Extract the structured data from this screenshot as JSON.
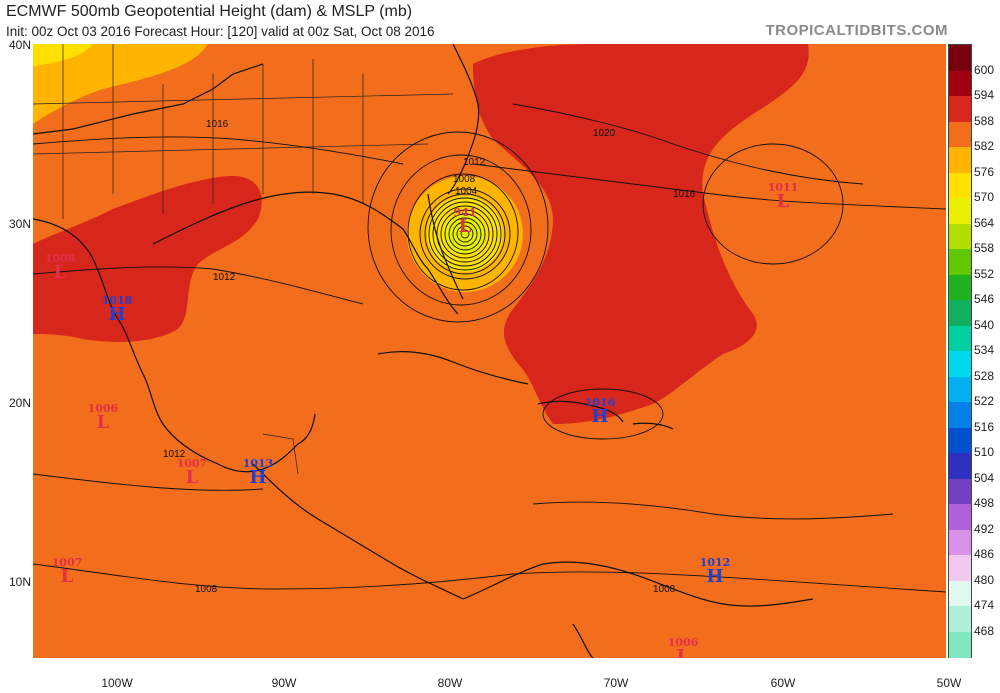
{
  "header": {
    "title": "ECMWF 500mb Geopotential Height (dam) & MSLP (mb)",
    "subtitle": "Init: 00z Oct 03 2016   Forecast Hour: [120]   valid at 00z Sat, Oct 08 2016",
    "brand": "TROPICALTIDBITS.COM"
  },
  "axes": {
    "lat_labels": [
      "40N",
      "30N",
      "20N",
      "10N"
    ],
    "lon_labels": [
      "100W",
      "90W",
      "80W",
      "70W",
      "60W",
      "50W"
    ]
  },
  "colorbar": {
    "labels": [
      "600",
      "594",
      "588",
      "582",
      "576",
      "570",
      "564",
      "558",
      "552",
      "546",
      "540",
      "534",
      "528",
      "522",
      "516",
      "510",
      "504",
      "498",
      "492",
      "486",
      "480",
      "474",
      "468"
    ],
    "colors": [
      "#7a0010",
      "#a00010",
      "#d7261c",
      "#f26d1c",
      "#ffb400",
      "#ffe000",
      "#e8f000",
      "#b4de00",
      "#60c800",
      "#20b020",
      "#10b060",
      "#00d0a0",
      "#00d8f0",
      "#00b0f0",
      "#0080e8",
      "#0050d0",
      "#3030c0",
      "#7040c0",
      "#b060d8",
      "#d890e8",
      "#f0c8f0",
      "#e0f8f0",
      "#b0f0d8",
      "#80e8c0"
    ]
  },
  "pressure_centers": [
    {
      "type": "L",
      "value": "941"
    },
    {
      "type": "L",
      "value": "1011"
    },
    {
      "type": "L",
      "value": "1008"
    },
    {
      "type": "H",
      "value": "1018"
    },
    {
      "type": "L",
      "value": "1006"
    },
    {
      "type": "L",
      "value": "1007"
    },
    {
      "type": "H",
      "value": "1013"
    },
    {
      "type": "H",
      "value": "1016"
    },
    {
      "type": "L",
      "value": "1007"
    },
    {
      "type": "H",
      "value": "1012"
    },
    {
      "type": "L",
      "value": "1006"
    }
  ],
  "isobar_labels": [
    "1016",
    "1020",
    "1012",
    "1008",
    "1004",
    "1016",
    "1012",
    "1012",
    "1008",
    "1008"
  ]
}
